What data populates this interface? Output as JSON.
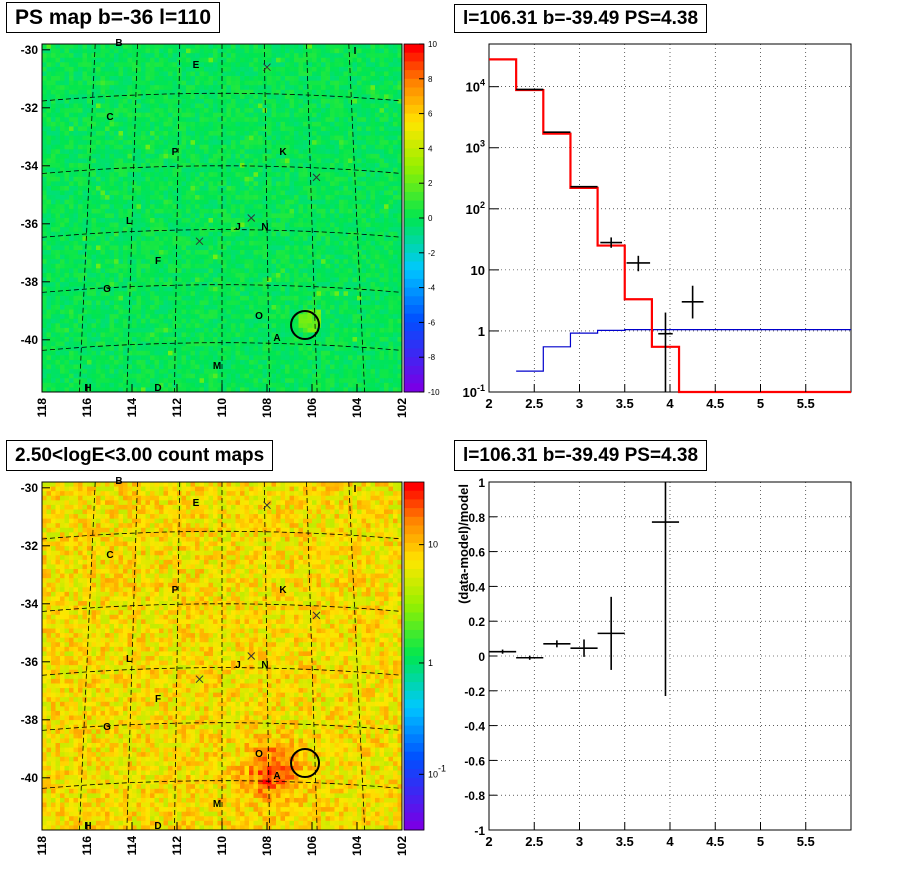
{
  "colors": {
    "data": "#000000",
    "model": "#ff0000",
    "background_model": "#0000cc",
    "frame": "#000000"
  },
  "panel_titles": {
    "ps_map": "PS map b=-36 l=110",
    "spectrum": "l=106.31 b=-39.49 PS=4.38",
    "count_map": "2.50<logE<3.00 count maps",
    "residual": "l=106.31 b=-39.49 PS=4.38"
  },
  "map_labels": [
    {
      "text": "B"
    },
    {
      "text": "E"
    },
    {
      "text": "I"
    },
    {
      "text": "C"
    },
    {
      "text": "P"
    },
    {
      "text": "K"
    },
    {
      "text": "L"
    },
    {
      "text": "J"
    },
    {
      "text": "N"
    },
    {
      "text": "F"
    },
    {
      "text": "G"
    },
    {
      "text": "O"
    },
    {
      "text": "A"
    },
    {
      "text": "M"
    },
    {
      "text": "H"
    },
    {
      "text": "D"
    }
  ],
  "chart_data": [
    {
      "name": "ps-map",
      "type": "heatmap",
      "title": "PS map b=-36 l=110",
      "xlim": [
        118,
        102
      ],
      "ylim": [
        -41.8,
        -29.8
      ],
      "x_ticks": [
        "118",
        "116",
        "114",
        "112",
        "110",
        "108",
        "106",
        "104",
        "102"
      ],
      "y_ticks": [
        "-30",
        "-32",
        "-34",
        "-36",
        "-38",
        "-40"
      ],
      "colorbar_ticks": [
        "10",
        "8",
        "6",
        "4",
        "2",
        "0",
        "-2",
        "-4",
        "-6",
        "-8",
        "-10"
      ],
      "colorbar_range": [
        -10,
        10
      ],
      "grid": true,
      "markers": [
        {
          "l": 108.0,
          "b": -30.6
        },
        {
          "l": 105.8,
          "b": -34.4
        },
        {
          "l": 108.7,
          "b": -35.8
        },
        {
          "l": 111.0,
          "b": -36.6
        }
      ],
      "source_circle": {
        "l": 106.31,
        "b": -39.49
      }
    },
    {
      "name": "spectrum",
      "type": "line",
      "title": "l=106.31 b=-39.49 PS=4.38",
      "xlim": [
        2,
        6
      ],
      "ylim": [
        0.1,
        50000
      ],
      "yscale": "log",
      "x_ticks": [
        "2",
        "2.5",
        "3",
        "3.5",
        "4",
        "4.5",
        "5",
        "5.5"
      ],
      "y_ticks": [
        "10^{-1}",
        "1",
        "10",
        "10^{2}",
        "10^{3}",
        "10^{4}"
      ],
      "grid": true,
      "series": [
        {
          "type": "step",
          "edges": [
            2,
            2.3,
            2.6,
            2.9,
            3.2,
            3.5,
            3.8,
            4.1,
            4.4,
            6
          ],
          "values": [
            28000,
            8800,
            1700,
            220,
            25,
            3.3,
            0.55,
            0.1,
            0.1
          ]
        },
        {
          "type": "step",
          "edges": [
            2.3,
            2.6,
            2.9,
            3.2,
            3.5,
            6
          ],
          "values": [
            0.22,
            0.55,
            0.92,
            1.02,
            1.05
          ]
        },
        {
          "type": "errorbar",
          "points": [
            {
              "x": 2.45,
              "y": 9000,
              "xerr": 0.15,
              "ylo": 9000,
              "yhi": 9000
            },
            {
              "x": 2.75,
              "y": 1800,
              "xerr": 0.15,
              "ylo": 1800,
              "yhi": 1800
            },
            {
              "x": 3.05,
              "y": 230,
              "xerr": 0.15,
              "ylo": 225,
              "yhi": 235
            },
            {
              "x": 3.35,
              "y": 28,
              "xerr": 0.12,
              "ylo": 23,
              "yhi": 34
            },
            {
              "x": 3.65,
              "y": 13,
              "xerr": 0.13,
              "ylo": 9.5,
              "yhi": 17
            },
            {
              "x": 3.95,
              "y": 0.9,
              "xerr": 0.08,
              "ylo": 0.1,
              "yhi": 2
            },
            {
              "x": 4.25,
              "y": 3,
              "xerr": 0.12,
              "ylo": 1.6,
              "yhi": 5.5
            }
          ]
        }
      ]
    },
    {
      "name": "count-map",
      "type": "heatmap",
      "title": "2.50<logE<3.00 count maps",
      "xlim": [
        118,
        102
      ],
      "ylim": [
        -41.8,
        -29.8
      ],
      "x_ticks": [
        "118",
        "116",
        "114",
        "112",
        "110",
        "108",
        "106",
        "104",
        "102"
      ],
      "y_ticks": [
        "-30",
        "-32",
        "-34",
        "-36",
        "-38",
        "-40"
      ],
      "colorbar_ticks": [
        "10",
        "1",
        "10^{-1}"
      ],
      "colorbar_scale": "log",
      "grid": true,
      "markers": [
        {
          "l": 108.0,
          "b": -30.6
        },
        {
          "l": 105.8,
          "b": -34.4
        },
        {
          "l": 108.7,
          "b": -35.8
        },
        {
          "l": 111.0,
          "b": -36.6
        }
      ],
      "source_circle": {
        "l": 106.31,
        "b": -39.49
      }
    },
    {
      "name": "residual",
      "type": "scatter",
      "title": "l=106.31 b=-39.49 PS=4.38",
      "xlim": [
        2,
        6
      ],
      "ylim": [
        -1,
        1
      ],
      "ylabel": "(data-model)/model",
      "x_ticks": [
        "2",
        "2.5",
        "3",
        "3.5",
        "4",
        "4.5",
        "5",
        "5.5"
      ],
      "y_ticks": [
        "1",
        "0.8",
        "0.6",
        "0.4",
        "0.2",
        "0",
        "-0.2",
        "-0.4",
        "-0.6",
        "-0.8",
        "-1"
      ],
      "grid": true,
      "points": [
        {
          "x": 2.15,
          "y": 0.025,
          "xerr": 0.15,
          "yerr": 0.012
        },
        {
          "x": 2.45,
          "y": -0.01,
          "xerr": 0.15,
          "yerr": 0.012
        },
        {
          "x": 2.75,
          "y": 0.07,
          "xerr": 0.15,
          "yerr": 0.02
        },
        {
          "x": 3.05,
          "y": 0.045,
          "xerr": 0.15,
          "yerr": 0.05
        },
        {
          "x": 3.35,
          "y": 0.13,
          "xerr": 0.15,
          "yerr": 0.21
        },
        {
          "x": 3.95,
          "y": 0.77,
          "xerr": 0.15,
          "yerr": 1.0
        }
      ]
    }
  ]
}
